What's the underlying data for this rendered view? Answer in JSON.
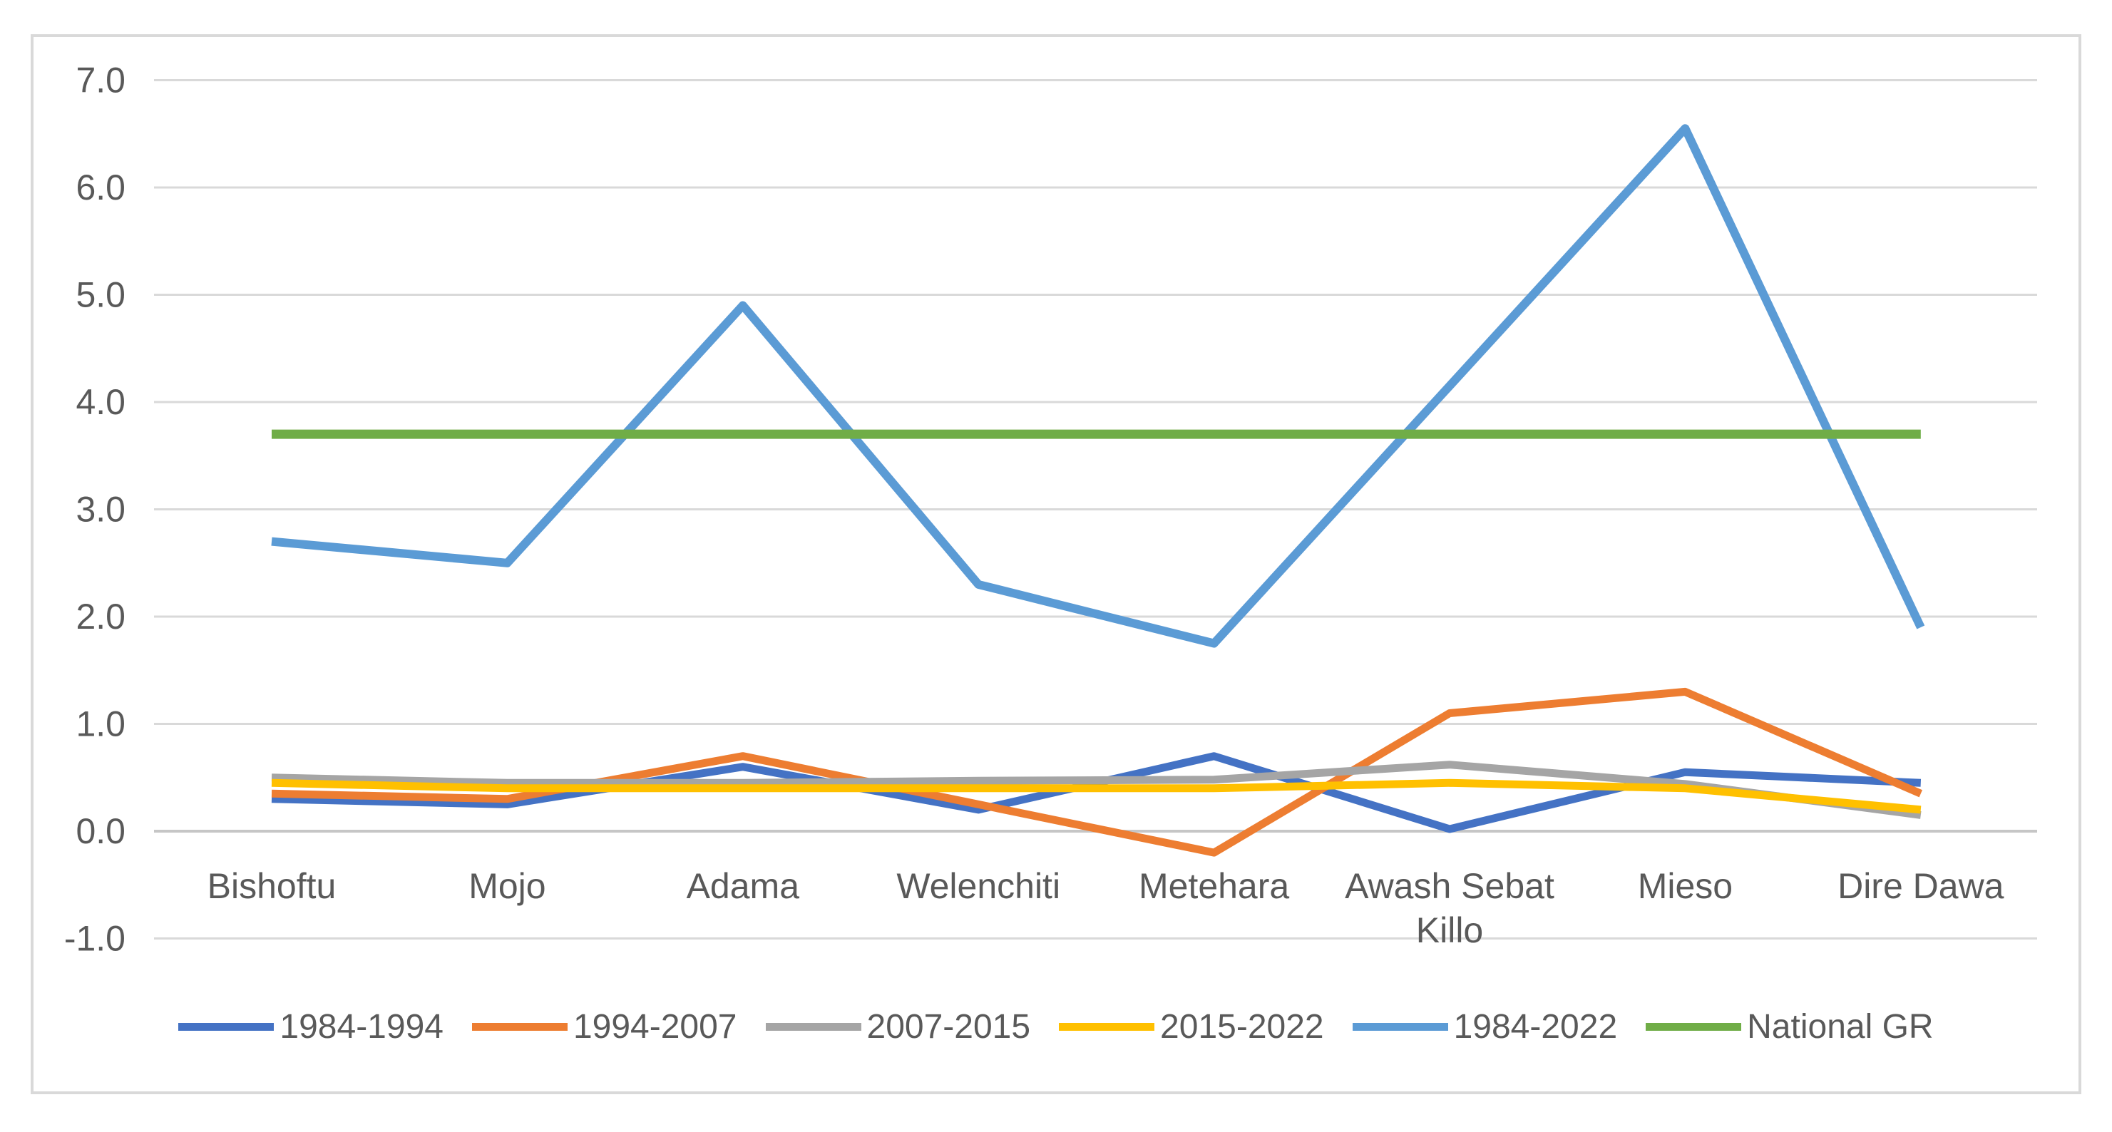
{
  "chart_data": {
    "type": "line",
    "title": "",
    "xlabel": "",
    "ylabel": "",
    "ylim": [
      -1.0,
      7.0
    ],
    "y_tick_step": 1.0,
    "y_tick_labels": [
      "7.0",
      "6.0",
      "5.0",
      "4.0",
      "3.0",
      "2.0",
      "1.0",
      "0.0",
      "-1.0"
    ],
    "grid": true,
    "legend_position": "bottom",
    "categories": [
      "Bishoftu",
      "Mojo",
      "Adama",
      "Welenchiti",
      "Metehara",
      "Awash Sebat Killo",
      "Mieso",
      "Dire Dawa"
    ],
    "category_label_lines": [
      [
        "Bishoftu"
      ],
      [
        "Mojo"
      ],
      [
        "Adama"
      ],
      [
        "Welenchiti"
      ],
      [
        "Metehara"
      ],
      [
        "Awash Sebat",
        "Killo"
      ],
      [
        "Mieso"
      ],
      [
        "Dire Dawa"
      ]
    ],
    "series": [
      {
        "name": "1984-1994",
        "color": "#4472C4",
        "stroke_width": 11,
        "values": [
          0.3,
          0.25,
          0.6,
          0.2,
          0.7,
          0.02,
          0.55,
          0.45
        ]
      },
      {
        "name": "1994-2007",
        "color": "#ED7D31",
        "stroke_width": 11,
        "values": [
          0.35,
          0.3,
          0.7,
          0.25,
          -0.2,
          1.1,
          1.3,
          0.35
        ]
      },
      {
        "name": "2007-2015",
        "color": "#A5A5A5",
        "stroke_width": 11,
        "values": [
          0.5,
          0.45,
          0.45,
          0.47,
          0.48,
          0.62,
          0.44,
          0.15
        ]
      },
      {
        "name": "2015-2022",
        "color": "#FFC000",
        "stroke_width": 11,
        "values": [
          0.45,
          0.4,
          0.4,
          0.4,
          0.4,
          0.45,
          0.4,
          0.2
        ]
      },
      {
        "name": "1984-2022",
        "color": "#5B9BD5",
        "stroke_width": 12,
        "values": [
          2.7,
          2.5,
          4.9,
          2.3,
          1.75,
          4.15,
          6.55,
          1.9
        ]
      },
      {
        "name": "National GR",
        "color": "#70AD47",
        "stroke_width": 13,
        "values": [
          3.7,
          3.7,
          3.7,
          3.7,
          3.7,
          3.7,
          3.7,
          3.7
        ]
      }
    ],
    "colors": {
      "gridline": "#D9D9D9",
      "zero_line": "#C6C6C6",
      "axis_text": "#595959",
      "frame_border": "#D9D9D9",
      "background": "#FFFFFF"
    }
  },
  "legend": {
    "items": [
      {
        "label": "1984-1994"
      },
      {
        "label": "1994-2007"
      },
      {
        "label": "2007-2015"
      },
      {
        "label": "2015-2022"
      },
      {
        "label": "1984-2022"
      },
      {
        "label": "National GR"
      }
    ]
  }
}
